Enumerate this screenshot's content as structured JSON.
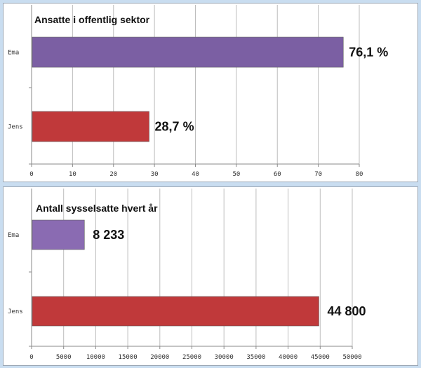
{
  "chart_data": [
    {
      "type": "bar",
      "orientation": "horizontal",
      "title": "Ansatte i offentlig sektor",
      "categories": [
        "Ema",
        "Jens"
      ],
      "values": [
        76.1,
        28.7
      ],
      "data_labels": [
        "76,1 %",
        "28,7 %"
      ],
      "colors": [
        "#7b5fa3",
        "#c0393a"
      ],
      "xlim": [
        0,
        80
      ],
      "ticks": [
        0,
        10,
        20,
        30,
        40,
        50,
        60,
        70,
        80
      ],
      "tick_labels": [
        "0",
        "10",
        "20",
        "30",
        "40",
        "50",
        "60",
        "70",
        "80"
      ],
      "grid": true,
      "legend": "none"
    },
    {
      "type": "bar",
      "orientation": "horizontal",
      "title": "Antall sysselsatte hvert år",
      "categories": [
        "Ema",
        "Jens"
      ],
      "values": [
        8233,
        44800
      ],
      "data_labels": [
        "8 233",
        "44 800"
      ],
      "colors": [
        "#8a6bb2",
        "#c0393a"
      ],
      "xlim": [
        0,
        50000
      ],
      "ticks": [
        0,
        5000,
        10000,
        15000,
        20000,
        25000,
        30000,
        35000,
        40000,
        45000,
        50000
      ],
      "tick_labels": [
        "0",
        "5000",
        "10000",
        "15000",
        "20000",
        "25000",
        "30000",
        "35000",
        "40000",
        "45000",
        "50000"
      ],
      "grid": true,
      "legend": "none"
    }
  ]
}
